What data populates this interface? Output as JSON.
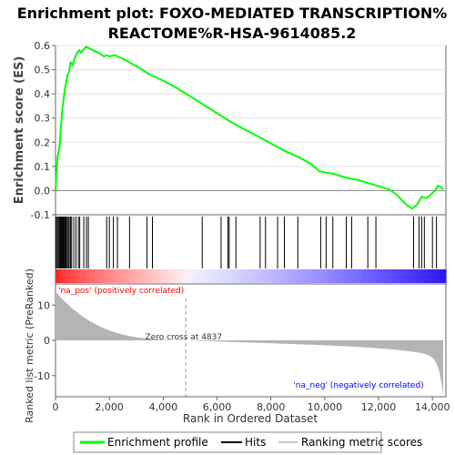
{
  "title_line1": "Enrichment plot: FOXO-MEDIATED TRANSCRIPTION%",
  "title_line2": "REACTOME%R-HSA-9614085.2",
  "chart_data": {
    "type": "line",
    "panels": [
      "enrichment-profile",
      "hits",
      "ranking-metric"
    ],
    "ylabel_top": "Enrichment score (ES)",
    "ylabel_bottom": "Ranked list metric (PreRanked)",
    "xlabel": "Rank in Ordered Dataset",
    "xlim": [
      0,
      14500
    ],
    "es_ylim": [
      -0.1,
      0.6
    ],
    "es_yticks": [
      "0.6",
      "0.5",
      "0.4",
      "0.3",
      "0.2",
      "0.1",
      "0.0",
      "-0.1"
    ],
    "es_ytick_values": [
      0.6,
      0.5,
      0.4,
      0.3,
      0.2,
      0.1,
      0.0,
      -0.1
    ],
    "metric_ylim": [
      -16,
      16
    ],
    "metric_yticks": [
      "10",
      "0",
      "-10"
    ],
    "metric_ytick_values": [
      10,
      0,
      -10
    ],
    "xticks": [
      "0",
      "2,000",
      "4,000",
      "6,000",
      "8,000",
      "10,000",
      "12,000",
      "14,000"
    ],
    "xtick_values": [
      0,
      2000,
      4000,
      6000,
      8000,
      10000,
      12000,
      14000
    ],
    "enrichment_profile": {
      "x": [
        0,
        40,
        80,
        150,
        200,
        250,
        300,
        350,
        400,
        450,
        500,
        560,
        650,
        720,
        800,
        880,
        950,
        1050,
        1150,
        1300,
        1600,
        1800,
        1900,
        2000,
        2200,
        2500,
        3000,
        3500,
        4000,
        4500,
        5000,
        5500,
        6000,
        6500,
        7000,
        7500,
        8000,
        8500,
        9000,
        9500,
        9800,
        10000,
        10300,
        10600,
        10900,
        11200,
        11500,
        11800,
        12100,
        12400,
        12700,
        13000,
        13250,
        13400,
        13500,
        13600,
        13700,
        13800,
        14000,
        14100,
        14200,
        14300,
        14400
      ],
      "y": [
        0.0,
        0.08,
        0.14,
        0.18,
        0.26,
        0.33,
        0.38,
        0.42,
        0.45,
        0.48,
        0.49,
        0.53,
        0.52,
        0.55,
        0.57,
        0.58,
        0.57,
        0.585,
        0.595,
        0.585,
        0.57,
        0.555,
        0.56,
        0.555,
        0.56,
        0.545,
        0.515,
        0.48,
        0.455,
        0.425,
        0.39,
        0.355,
        0.32,
        0.285,
        0.255,
        0.225,
        0.195,
        0.165,
        0.14,
        0.11,
        0.08,
        0.075,
        0.07,
        0.06,
        0.05,
        0.045,
        0.035,
        0.025,
        0.015,
        0.005,
        -0.02,
        -0.055,
        -0.075,
        -0.06,
        -0.045,
        -0.025,
        -0.03,
        -0.03,
        -0.01,
        0.0,
        0.02,
        0.015,
        0.005
      ]
    },
    "hits": [
      15,
      60,
      95,
      130,
      160,
      190,
      220,
      250,
      280,
      300,
      330,
      360,
      390,
      430,
      470,
      510,
      560,
      600,
      680,
      760,
      850,
      900,
      1050,
      1150,
      1220,
      1900,
      2000,
      2150,
      2300,
      2750,
      3400,
      3600,
      5450,
      6150,
      6400,
      6450,
      6700,
      7600,
      7800,
      8250,
      8500,
      9000,
      9850,
      10050,
      10300,
      10800,
      11000,
      11600,
      11900,
      13300,
      13500,
      13600,
      13700,
      14000,
      14150
    ],
    "zero_cross": 4837,
    "zero_cross_label": "Zero cross at 4837",
    "na_pos_label": "'na_pos' (positively correlated)",
    "na_neg_label": "'na_neg' (negatively correlated)",
    "legend": [
      {
        "label": "Enrichment profile",
        "color": "#00ff00"
      },
      {
        "label": "Hits",
        "color": "#000000"
      },
      {
        "label": "Ranking metric scores",
        "color": "#c8c8c8"
      }
    ],
    "colors": {
      "profile": "#00ff00",
      "hits": "#000000",
      "metric_fill": "#b4b4b4",
      "pos_text": "#ff0000",
      "neg_text": "#0000ff",
      "zero_line": "#999999"
    }
  }
}
